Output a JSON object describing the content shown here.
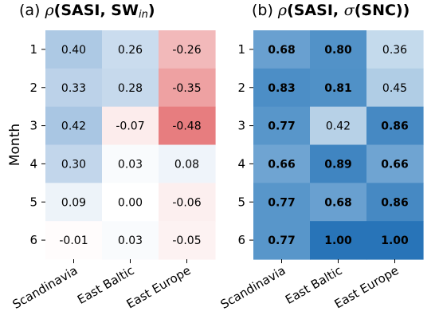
{
  "chart_data": [
    {
      "type": "heatmap",
      "panel_label": "(a)",
      "title": "ρ(SASI, SW_in)",
      "ylabel": "Month",
      "rows": [
        "1",
        "2",
        "3",
        "4",
        "5",
        "6"
      ],
      "columns": [
        "Scandinavia",
        "East Baltic",
        "East Europe"
      ],
      "values": [
        [
          0.4,
          0.26,
          -0.26
        ],
        [
          0.33,
          0.28,
          -0.35
        ],
        [
          0.42,
          -0.07,
          -0.48
        ],
        [
          0.3,
          0.03,
          0.08
        ],
        [
          0.09,
          0.0,
          -0.06
        ],
        [
          -0.01,
          0.03,
          -0.05
        ]
      ],
      "labels": [
        [
          "0.40",
          "0.26",
          "-0.26"
        ],
        [
          "0.33",
          "0.28",
          "-0.35"
        ],
        [
          "0.42",
          "-0.07",
          "-0.48"
        ],
        [
          "0.30",
          "0.03",
          "0.08"
        ],
        [
          "0.09",
          "0.00",
          "-0.06"
        ],
        [
          "-0.01",
          "0.03",
          "-0.05"
        ]
      ],
      "bold": [
        [
          false,
          false,
          false
        ],
        [
          false,
          false,
          false
        ],
        [
          false,
          false,
          false
        ],
        [
          false,
          false,
          false
        ],
        [
          false,
          false,
          false
        ],
        [
          false,
          false,
          false
        ]
      ],
      "colormap": "diverging red-blue",
      "color_range": [
        -1,
        1
      ]
    },
    {
      "type": "heatmap",
      "panel_label": "(b)",
      "title": "ρ(SASI, σ(SNC))",
      "rows": [
        "1",
        "2",
        "3",
        "4",
        "5",
        "6"
      ],
      "columns": [
        "Scandinavia",
        "East Baltic",
        "East Europe"
      ],
      "values": [
        [
          0.68,
          0.8,
          0.36
        ],
        [
          0.83,
          0.81,
          0.45
        ],
        [
          0.77,
          0.42,
          0.86
        ],
        [
          0.66,
          0.89,
          0.66
        ],
        [
          0.77,
          0.68,
          0.86
        ],
        [
          0.77,
          1.0,
          1.0
        ]
      ],
      "labels": [
        [
          "0.68",
          "0.80",
          "0.36"
        ],
        [
          "0.83",
          "0.81",
          "0.45"
        ],
        [
          "0.77",
          "0.42",
          "0.86"
        ],
        [
          "0.66",
          "0.89",
          "0.66"
        ],
        [
          "0.77",
          "0.68",
          "0.86"
        ],
        [
          "0.77",
          "1.00",
          "1.00"
        ]
      ],
      "bold": [
        [
          true,
          true,
          false
        ],
        [
          true,
          true,
          false
        ],
        [
          true,
          false,
          true
        ],
        [
          true,
          true,
          true
        ],
        [
          true,
          true,
          true
        ],
        [
          true,
          true,
          true
        ]
      ],
      "colormap": "blues",
      "color_range": [
        0,
        1
      ]
    }
  ]
}
